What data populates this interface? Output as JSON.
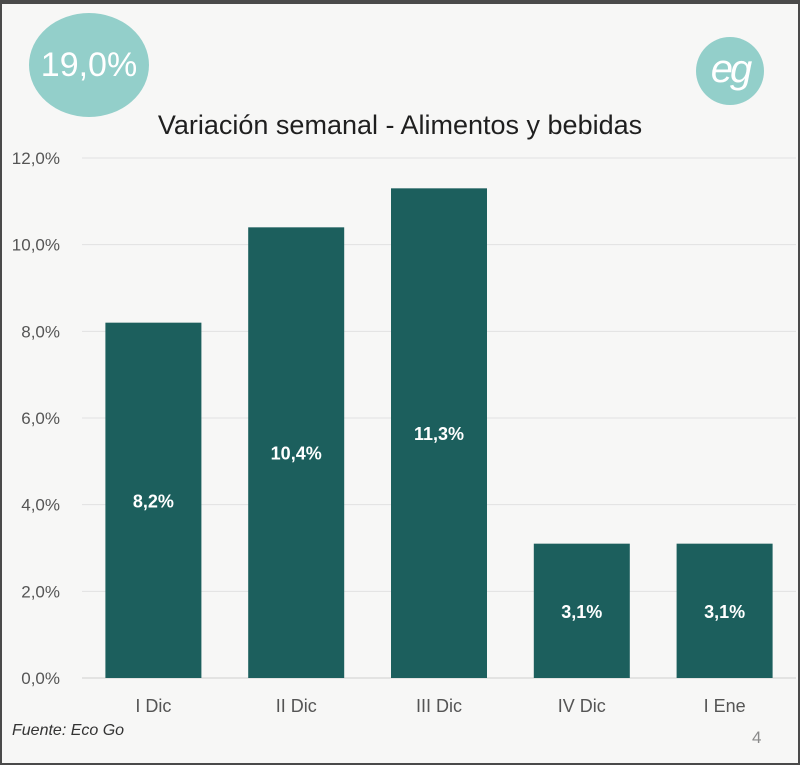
{
  "badge": {
    "value": "19,0%"
  },
  "logo": {
    "text": "eg"
  },
  "footer": {
    "source": "Fuente: Eco Go",
    "page": "4"
  },
  "colors": {
    "bar": "#1c5f5d",
    "accent": "#93cfca",
    "grid": "#e2e2e2"
  },
  "chart_data": {
    "type": "bar",
    "title": "Variación semanal - Alimentos y bebidas",
    "categories": [
      "I Dic",
      "II Dic",
      "III Dic",
      "IV Dic",
      "I Ene"
    ],
    "values": [
      8.2,
      10.4,
      11.3,
      3.1,
      3.1
    ],
    "data_labels": [
      "8,2%",
      "10,4%",
      "11,3%",
      "3,1%",
      "3,1%"
    ],
    "yticks": [
      "0,0%",
      "2,0%",
      "4,0%",
      "6,0%",
      "8,0%",
      "10,0%",
      "12,0%"
    ],
    "ylim": [
      0,
      12
    ],
    "xlabel": "",
    "ylabel": "",
    "grid": true,
    "legend": "none"
  }
}
